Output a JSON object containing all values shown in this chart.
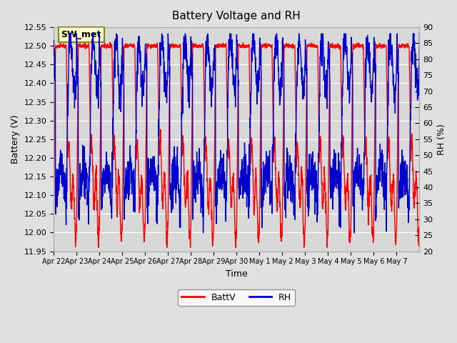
{
  "title": "Battery Voltage and RH",
  "xlabel": "Time",
  "ylabel_left": "Battery (V)",
  "ylabel_right": "RH (%)",
  "annotation": "SW_met",
  "ylim_left": [
    11.95,
    12.55
  ],
  "ylim_right": [
    20,
    90
  ],
  "yticks_left": [
    11.95,
    12.0,
    12.05,
    12.1,
    12.15,
    12.2,
    12.25,
    12.3,
    12.35,
    12.4,
    12.45,
    12.5,
    12.55
  ],
  "yticks_right": [
    20,
    25,
    30,
    35,
    40,
    45,
    50,
    55,
    60,
    65,
    70,
    75,
    80,
    85,
    90
  ],
  "x_tick_labels": [
    "Apr 22",
    "Apr 23",
    "Apr 24",
    "Apr 25",
    "Apr 26",
    "Apr 27",
    "Apr 28",
    "Apr 29",
    "Apr 30",
    "May 1",
    "May 2",
    "May 3",
    "May 4",
    "May 5",
    "May 6",
    "May 7"
  ],
  "n_days": 16,
  "batt_color": "#ff0000",
  "rh_color": "#0000cc",
  "legend_batt": "BattV",
  "legend_rh": "RH",
  "bg_color": "#e0e0e0",
  "plot_bg_color": "#d8d8d8",
  "grid_color": "#ffffff",
  "annotation_bg": "#ffffcc",
  "annotation_border": "#888800"
}
